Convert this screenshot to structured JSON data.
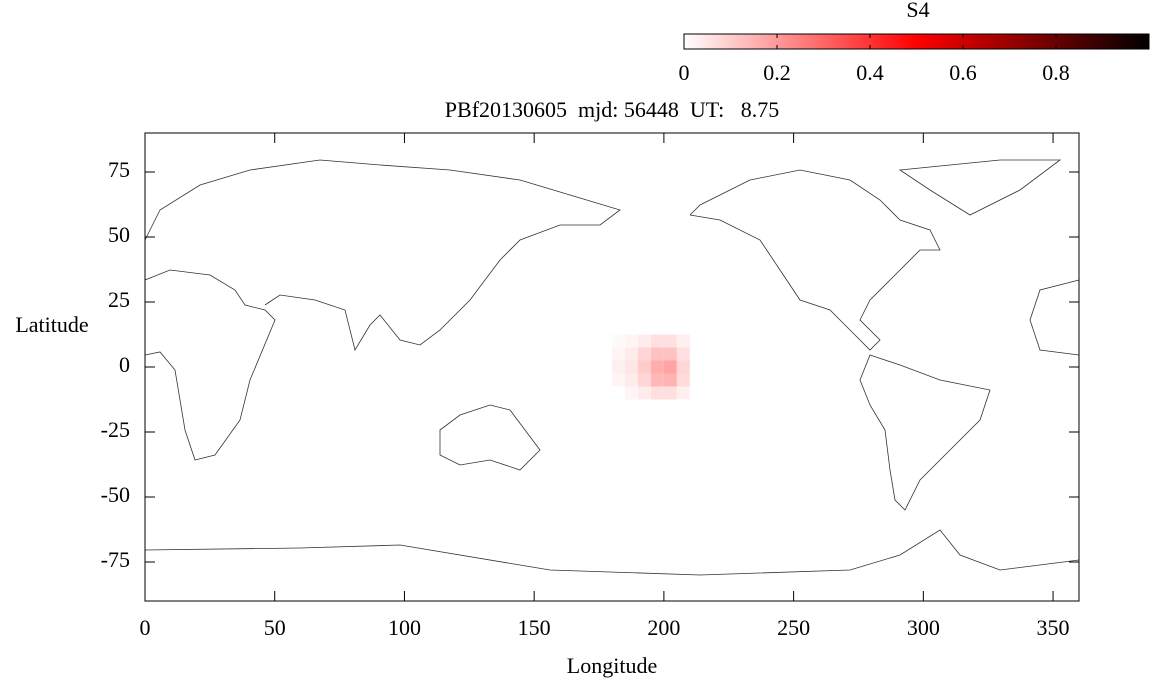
{
  "chart_data": {
    "type": "heatmap",
    "title": "PBf20130605  mjd: 56448  UT:   8.75",
    "xlabel": "Longitude",
    "ylabel": "Latitude",
    "xlim": [
      0,
      360
    ],
    "ylim": [
      -90,
      90
    ],
    "xticks": [
      0,
      50,
      100,
      150,
      200,
      250,
      300,
      350
    ],
    "yticks": [
      -75,
      -50,
      -25,
      0,
      25,
      50,
      75
    ],
    "x": [
      182.5,
      187.5,
      192.5,
      197.5,
      202.5,
      207.5
    ],
    "y": [
      10,
      5,
      0,
      -5,
      -10
    ],
    "z": [
      [
        0.01,
        0.02,
        0.04,
        0.06,
        0.06,
        0.03
      ],
      [
        0.02,
        0.04,
        0.08,
        0.12,
        0.12,
        0.06
      ],
      [
        0.03,
        0.05,
        0.1,
        0.16,
        0.18,
        0.08
      ],
      [
        0.02,
        0.04,
        0.08,
        0.14,
        0.15,
        0.07
      ],
      [
        0,
        0.02,
        0.04,
        0.06,
        0.06,
        0.03
      ]
    ],
    "colormap": [
      "#ffffff",
      "#ff0000",
      "#000000"
    ],
    "colorbar": {
      "title": "S4",
      "lim": [
        0,
        1
      ],
      "ticks": [
        0,
        0.2,
        0.4,
        0.6,
        0.8
      ]
    }
  }
}
